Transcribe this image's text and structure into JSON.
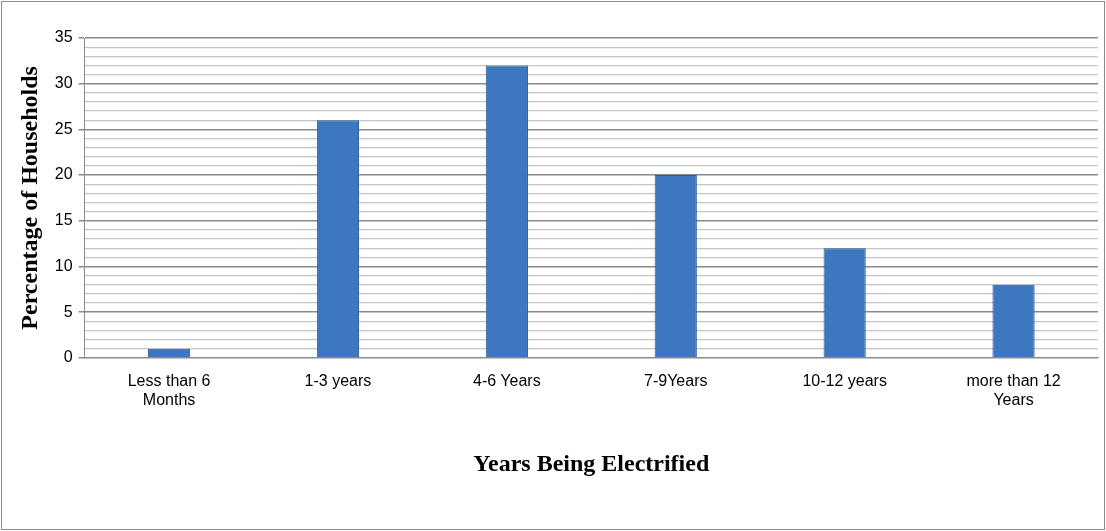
{
  "chart_data": {
    "type": "bar",
    "xlabel": "Years Being Electrified",
    "ylabel": "Percentage of Households",
    "categories": [
      "Less than 6 Months",
      "1-3 years",
      "4-6 Years",
      "7-9Years",
      "10-12 years",
      "more than 12 Years"
    ],
    "values": [
      1,
      26,
      32,
      20,
      12,
      8
    ],
    "color": "#3d77c0",
    "ylim": [
      0,
      35
    ],
    "yticks": [
      0,
      {
        "value": 1,
        "label": null
      },
      {
        "value": 2,
        "label": null
      },
      {
        "value": 3,
        "label": null
      },
      {
        "value": 4,
        "label": null
      },
      5,
      {
        "value": 6,
        "label": null
      },
      {
        "value": 7,
        "label": null
      },
      {
        "value": 8,
        "label": null
      },
      {
        "value": 9,
        "label": null
      },
      10,
      {
        "value": 11,
        "label": null
      },
      {
        "value": 12,
        "label": null
      },
      {
        "value": 13,
        "label": null
      },
      {
        "value": 14,
        "label": null
      },
      15,
      {
        "value": 16,
        "label": null
      },
      {
        "value": 17,
        "label": null
      },
      {
        "value": 18,
        "label": null
      },
      {
        "value": 19,
        "label": null
      },
      20,
      {
        "value": 21,
        "label": null
      },
      {
        "value": 22,
        "label": null
      },
      {
        "value": 23,
        "label": null
      },
      {
        "value": 24,
        "label": null
      },
      25,
      {
        "value": 26,
        "label": null
      },
      {
        "value": 27,
        "label": null
      },
      {
        "value": 28,
        "label": null
      },
      {
        "value": 29,
        "label": null
      },
      30,
      {
        "value": 31,
        "label": null
      },
      {
        "value": 32,
        "label": null
      },
      {
        "value": 33,
        "label": null
      },
      {
        "value": 34,
        "label": null
      },
      35
    ],
    "grid": "y",
    "legend": false
  }
}
